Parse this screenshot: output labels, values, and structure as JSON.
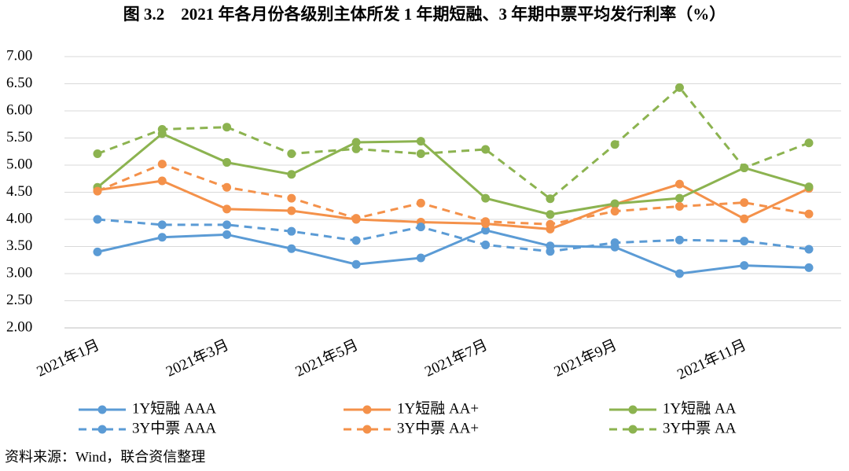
{
  "chart_data": {
    "type": "line",
    "title": "图 3.2　2021 年各月份各级别主体所发 1 年期短融、3 年期中票平均发行利率（%）",
    "source": "资料来源：Wind，联合资信整理",
    "categories": [
      "2021年1月",
      null,
      "2021年3月",
      null,
      "2021年5月",
      null,
      "2021年7月",
      null,
      "2021年9月",
      null,
      "2021年11月",
      null
    ],
    "series": [
      {
        "name": "1Y短融 AAA",
        "color": "#5b9bd5",
        "dashed": false,
        "values": [
          3.4,
          3.67,
          3.72,
          3.46,
          3.17,
          3.29,
          3.8,
          3.51,
          3.49,
          3.0,
          3.15,
          3.11
        ]
      },
      {
        "name": "1Y短融 AA+",
        "color": "#f4914a",
        "dashed": false,
        "values": [
          4.54,
          4.71,
          4.19,
          4.16,
          4.0,
          3.95,
          3.92,
          3.82,
          4.28,
          4.65,
          4.01,
          4.57
        ]
      },
      {
        "name": "1Y短融 AA",
        "color": "#8cb350",
        "dashed": false,
        "values": [
          4.59,
          5.58,
          5.05,
          4.83,
          5.42,
          5.44,
          4.39,
          4.09,
          4.29,
          4.39,
          4.95,
          4.6
        ]
      },
      {
        "name": "3Y中票 AAA",
        "color": "#5b9bd5",
        "dashed": true,
        "values": [
          4.0,
          3.9,
          3.9,
          3.78,
          3.61,
          3.86,
          3.53,
          3.41,
          3.57,
          3.62,
          3.6,
          3.45
        ]
      },
      {
        "name": "3Y中票 AA+",
        "color": "#f4914a",
        "dashed": true,
        "values": [
          4.52,
          5.02,
          4.59,
          4.39,
          4.02,
          4.3,
          3.96,
          3.91,
          4.15,
          4.24,
          4.31,
          4.1
        ]
      },
      {
        "name": "3Y中票 AA",
        "color": "#8cb350",
        "dashed": true,
        "values": [
          5.21,
          5.66,
          5.7,
          5.21,
          5.3,
          5.21,
          5.29,
          4.38,
          5.38,
          6.43,
          4.95,
          5.41
        ]
      }
    ],
    "ylim": [
      2,
      7
    ],
    "yticks": [
      {
        "value": 2,
        "label": "2.00"
      },
      {
        "value": 2.5,
        "label": "2.50"
      },
      {
        "value": 3,
        "label": "3.00"
      },
      {
        "value": 3.5,
        "label": "3.50"
      },
      {
        "value": 4,
        "label": "4.00"
      },
      {
        "value": 4.5,
        "label": "4.50"
      },
      {
        "value": 5,
        "label": "5.00"
      },
      {
        "value": 5.5,
        "label": "5.50"
      },
      {
        "value": 6,
        "label": "6.00"
      },
      {
        "value": 6.5,
        "label": "6.50"
      },
      {
        "value": 7,
        "label": "7.00"
      }
    ],
    "grid": true,
    "legend": "bottom"
  }
}
